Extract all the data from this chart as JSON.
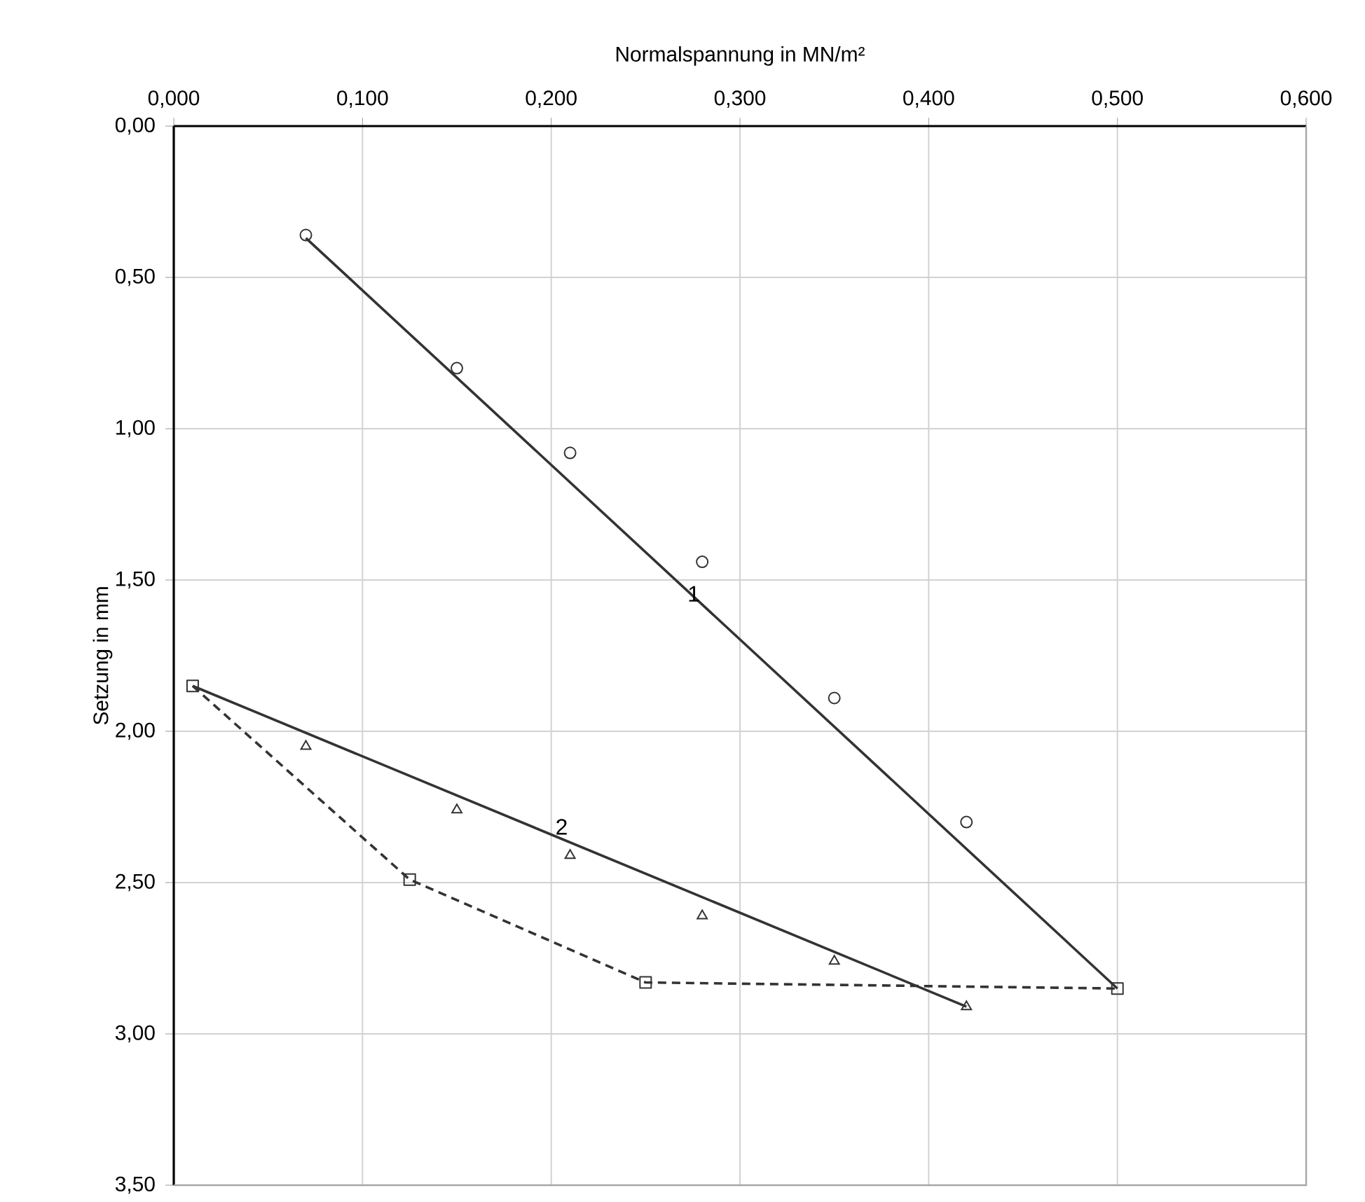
{
  "chart_data": {
    "type": "line",
    "xlabel": "Normalspannung  in MN/m²",
    "ylabel": "Setzung in mm",
    "xlim": [
      0,
      0.6
    ],
    "ylim": [
      3.5,
      0
    ],
    "xticks": [
      {
        "value": 0,
        "label": "0,000"
      },
      {
        "value": 0.1,
        "label": "0,100"
      },
      {
        "value": 0.2,
        "label": "0,200"
      },
      {
        "value": 0.3,
        "label": "0,300"
      },
      {
        "value": 0.4,
        "label": "0,400"
      },
      {
        "value": 0.5,
        "label": "0,500"
      },
      {
        "value": 0.6,
        "label": "0,600"
      }
    ],
    "yticks": [
      {
        "value": 0,
        "label": "0,00"
      },
      {
        "value": 0.5,
        "label": "0,50"
      },
      {
        "value": 1,
        "label": "1,00"
      },
      {
        "value": 1.5,
        "label": "1,50"
      },
      {
        "value": 2,
        "label": "2,00"
      },
      {
        "value": 2.5,
        "label": "2,50"
      },
      {
        "value": 3,
        "label": "3,00"
      },
      {
        "value": 3.5,
        "label": "3,50"
      }
    ],
    "grid": true,
    "series": [
      {
        "type": "scatter",
        "color": "#333333",
        "marker": "circle",
        "x": [
          0.07,
          0.15,
          0.21,
          0.28,
          0.35,
          0.42
        ],
        "values": [
          0.36,
          0.8,
          1.08,
          1.44,
          1.89,
          2.3
        ]
      },
      {
        "color": "#333333",
        "line_style": "solid",
        "x": [
          0.07,
          0.5
        ],
        "values": [
          0.37,
          2.85
        ]
      },
      {
        "type": "scatter",
        "color": "#333333",
        "marker": "triangle",
        "x": [
          0.07,
          0.15,
          0.21,
          0.28,
          0.35,
          0.42
        ],
        "values": [
          2.05,
          2.26,
          2.41,
          2.61,
          2.76,
          2.91
        ]
      },
      {
        "color": "#333333",
        "line_style": "solid",
        "x": [
          0.01,
          0.42
        ],
        "values": [
          1.85,
          2.91
        ]
      },
      {
        "color": "#333333",
        "marker": "square",
        "line_style": "dashed",
        "x": [
          0.01,
          0.125,
          0.25,
          0.5
        ],
        "values": [
          1.85,
          2.49,
          2.83,
          2.85
        ]
      }
    ],
    "annotations": [
      "1",
      "2"
    ]
  }
}
